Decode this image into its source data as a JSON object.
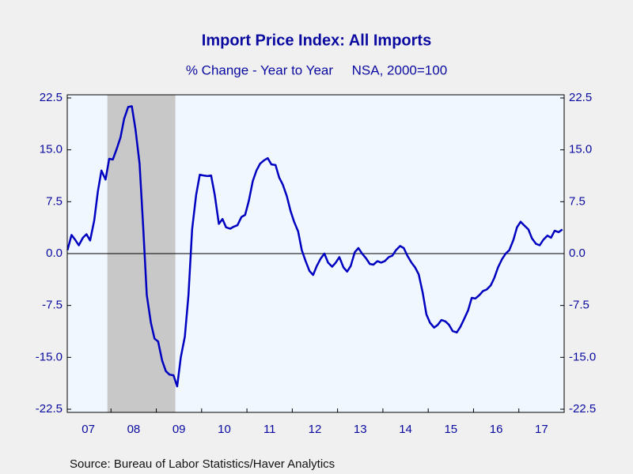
{
  "chart_data": {
    "type": "line",
    "title": "Import Price Index: All Imports",
    "subtitle": "% Change - Year to Year     NSA, 2000=100",
    "source": "Source:  Bureau of Labor Statistics/Haver Analytics",
    "x": [
      2007.04,
      2007.13,
      2007.21,
      2007.29,
      2007.38,
      2007.46,
      2007.54,
      2007.63,
      2007.71,
      2007.79,
      2007.88,
      2007.96,
      2008.04,
      2008.13,
      2008.21,
      2008.29,
      2008.38,
      2008.46,
      2008.54,
      2008.63,
      2008.71,
      2008.79,
      2008.88,
      2008.96,
      2009.04,
      2009.13,
      2009.21,
      2009.29,
      2009.38,
      2009.46,
      2009.54,
      2009.63,
      2009.71,
      2009.79,
      2009.88,
      2009.96,
      2010.04,
      2010.13,
      2010.21,
      2010.29,
      2010.38,
      2010.46,
      2010.54,
      2010.63,
      2010.71,
      2010.79,
      2010.88,
      2010.96,
      2011.04,
      2011.13,
      2011.21,
      2011.29,
      2011.38,
      2011.46,
      2011.54,
      2011.63,
      2011.71,
      2011.79,
      2011.88,
      2011.96,
      2012.04,
      2012.13,
      2012.21,
      2012.29,
      2012.38,
      2012.46,
      2012.54,
      2012.63,
      2012.71,
      2012.79,
      2012.88,
      2012.96,
      2013.04,
      2013.13,
      2013.21,
      2013.29,
      2013.38,
      2013.46,
      2013.54,
      2013.63,
      2013.71,
      2013.79,
      2013.88,
      2013.96,
      2014.04,
      2014.13,
      2014.21,
      2014.29,
      2014.38,
      2014.46,
      2014.54,
      2014.63,
      2014.71,
      2014.79,
      2014.88,
      2014.96,
      2015.04,
      2015.13,
      2015.21,
      2015.29,
      2015.38,
      2015.46,
      2015.54,
      2015.63,
      2015.71,
      2015.79,
      2015.88,
      2015.96,
      2016.04,
      2016.13,
      2016.21,
      2016.29,
      2016.38,
      2016.46,
      2016.54,
      2016.63,
      2016.71,
      2016.79,
      2016.88,
      2016.96,
      2017.04,
      2017.13,
      2017.21,
      2017.29,
      2017.38,
      2017.46,
      2017.54,
      2017.63,
      2017.71,
      2017.79,
      2017.88,
      2017.96
    ],
    "series": [
      {
        "color": "#0000c0",
        "values": [
          0.5,
          2.7,
          2.0,
          1.2,
          2.3,
          2.8,
          1.9,
          4.8,
          9.0,
          12.0,
          10.7,
          13.7,
          13.6,
          15.2,
          16.8,
          19.5,
          21.2,
          21.3,
          18.0,
          13.0,
          4.0,
          -6.0,
          -10.0,
          -12.3,
          -12.7,
          -15.5,
          -17.0,
          -17.5,
          -17.6,
          -19.2,
          -15.0,
          -12.0,
          -6.0,
          3.5,
          8.5,
          11.4,
          11.3,
          11.2,
          11.3,
          8.5,
          4.3,
          5.0,
          3.8,
          3.6,
          3.9,
          4.1,
          5.3,
          5.6,
          7.6,
          10.5,
          12.0,
          13.0,
          13.5,
          13.8,
          12.9,
          12.8,
          11.0,
          10.0,
          8.3,
          6.2,
          4.6,
          3.2,
          0.5,
          -1.0,
          -2.5,
          -3.1,
          -1.8,
          -0.7,
          0.0,
          -1.3,
          -1.9,
          -1.3,
          -0.5,
          -2.0,
          -2.6,
          -1.8,
          0.2,
          0.8,
          0.0,
          -0.7,
          -1.5,
          -1.6,
          -1.1,
          -1.3,
          -1.1,
          -0.5,
          -0.3,
          0.5,
          1.1,
          0.8,
          -0.3,
          -1.3,
          -2.0,
          -3.0,
          -5.7,
          -8.8,
          -10.0,
          -10.7,
          -10.3,
          -9.6,
          -9.8,
          -10.3,
          -11.2,
          -11.4,
          -10.6,
          -9.5,
          -8.2,
          -6.4,
          -6.5,
          -6.0,
          -5.4,
          -5.2,
          -4.6,
          -3.5,
          -2.0,
          -0.8,
          0.0,
          0.5,
          2.0,
          3.8,
          4.6,
          4.0,
          3.5,
          2.2,
          1.4,
          1.2,
          2.0,
          2.6,
          2.3,
          3.3,
          3.1,
          3.5
        ]
      }
    ],
    "xlim": [
      2007.0,
      2018.0
    ],
    "xticks": [
      {
        "value": 2007.5,
        "label": "07"
      },
      {
        "value": 2008.5,
        "label": "08"
      },
      {
        "value": 2009.5,
        "label": "09"
      },
      {
        "value": 2010.5,
        "label": "10"
      },
      {
        "value": 2011.5,
        "label": "11"
      },
      {
        "value": 2012.5,
        "label": "12"
      },
      {
        "value": 2013.5,
        "label": "13"
      },
      {
        "value": 2014.5,
        "label": "14"
      },
      {
        "value": 2015.5,
        "label": "15"
      },
      {
        "value": 2016.5,
        "label": "16"
      },
      {
        "value": 2017.5,
        "label": "17"
      }
    ],
    "ylim": [
      -22.5,
      22.5
    ],
    "yticks": [
      22.5,
      {
        "value": 15,
        "label": "15.0"
      },
      7.5,
      {
        "value": 0,
        "label": "0.0"
      },
      -7.5,
      {
        "value": -15,
        "label": "-15.0"
      },
      -22.5
    ],
    "recessions": [
      {
        "start": 2007.92,
        "end": 2009.42
      }
    ],
    "recession_color": "#c8c8c8",
    "plot_background": "#f0f7ff"
  }
}
